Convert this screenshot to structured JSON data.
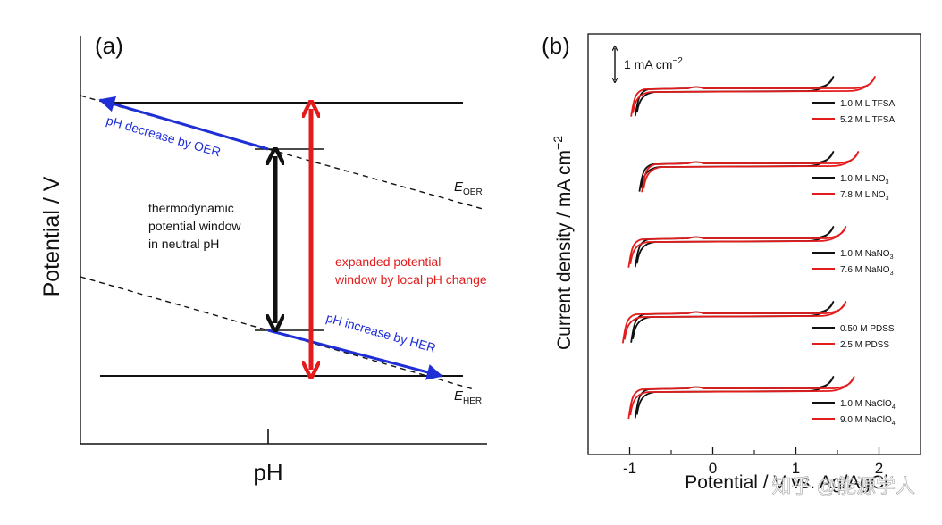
{
  "panel_a": {
    "label": "(a)",
    "ylabel": "Potential / V",
    "xlabel": "pH",
    "window_text": [
      "thermodynamic",
      "potential window",
      "in neutral pH"
    ],
    "expanded_text": [
      "expanded potential",
      "window by local pH change"
    ],
    "oer_arrow_text": "pH decrease by OER",
    "her_arrow_text": "pH increase by HER",
    "e_oer": {
      "main": "E",
      "sub": "OER"
    },
    "e_her": {
      "main": "E",
      "sub": "HER"
    }
  },
  "panel_b": {
    "label": "(b)",
    "ylabel_main": "Current density / mA cm",
    "ylabel_sup": "−2",
    "xlabel": "Potential / V vs. Ag/AgCl",
    "scale_bar": {
      "main": "1 mA cm",
      "sup": "−2"
    },
    "xticks": [
      "-1",
      "0",
      "1",
      "2"
    ],
    "xlim": [
      -1.5,
      2.5
    ]
  },
  "watermark": "知乎 @能源学人",
  "colors": {
    "black": "#111111",
    "red": "#e31b1b",
    "blue": "#1f2fd6"
  },
  "chart_data": [
    {
      "type": "diagram",
      "title": "",
      "xlabel": "pH",
      "ylabel": "Potential / V",
      "annotations": [
        "thermodynamic potential window in neutral pH",
        "expanded potential window by local pH change",
        "pH decrease by OER",
        "pH increase by HER",
        "E_OER",
        "E_HER"
      ]
    },
    {
      "type": "line",
      "title": "",
      "xlabel": "Potential / V vs. Ag/AgCl",
      "ylabel": "Current density / mA cm−2",
      "xlim": [
        -1.5,
        2.5
      ],
      "grid": false,
      "legend": "right of each trace pair",
      "series": [
        {
          "electrolyte": "LiTFSA",
          "low": {
            "label_main": "1.0 M LiTFSA",
            "label_sub": "",
            "anodic": 1.45,
            "cathodic": -0.9
          },
          "high": {
            "label_main": "5.2 M LiTFSA",
            "label_sub": "",
            "anodic": 1.95,
            "cathodic": -0.95
          }
        },
        {
          "electrolyte": "LiNO3",
          "low": {
            "label_main": "1.0 M LiNO",
            "label_sub": "3",
            "anodic": 1.45,
            "cathodic": -0.85
          },
          "high": {
            "label_main": "7.8 M LiNO",
            "label_sub": "3",
            "anodic": 1.75,
            "cathodic": -0.82
          }
        },
        {
          "electrolyte": "NaNO3",
          "low": {
            "label_main": "1.0 M NaNO",
            "label_sub": "3",
            "anodic": 1.45,
            "cathodic": -0.9
          },
          "high": {
            "label_main": "7.6 M NaNO",
            "label_sub": "3",
            "anodic": 1.6,
            "cathodic": -0.98
          }
        },
        {
          "electrolyte": "PDSS",
          "low": {
            "label_main": "0.50 M PDSS",
            "label_sub": "",
            "anodic": 1.45,
            "cathodic": -0.95
          },
          "high": {
            "label_main": "2.5 M PDSS",
            "label_sub": "",
            "anodic": 1.6,
            "cathodic": -1.05
          }
        },
        {
          "electrolyte": "NaClO4",
          "low": {
            "label_main": "1.0 M NaClO",
            "label_sub": "4",
            "anodic": 1.45,
            "cathodic": -0.9
          },
          "high": {
            "label_main": "9.0 M NaClO",
            "label_sub": "4",
            "anodic": 1.7,
            "cathodic": -0.98
          }
        }
      ]
    }
  ]
}
